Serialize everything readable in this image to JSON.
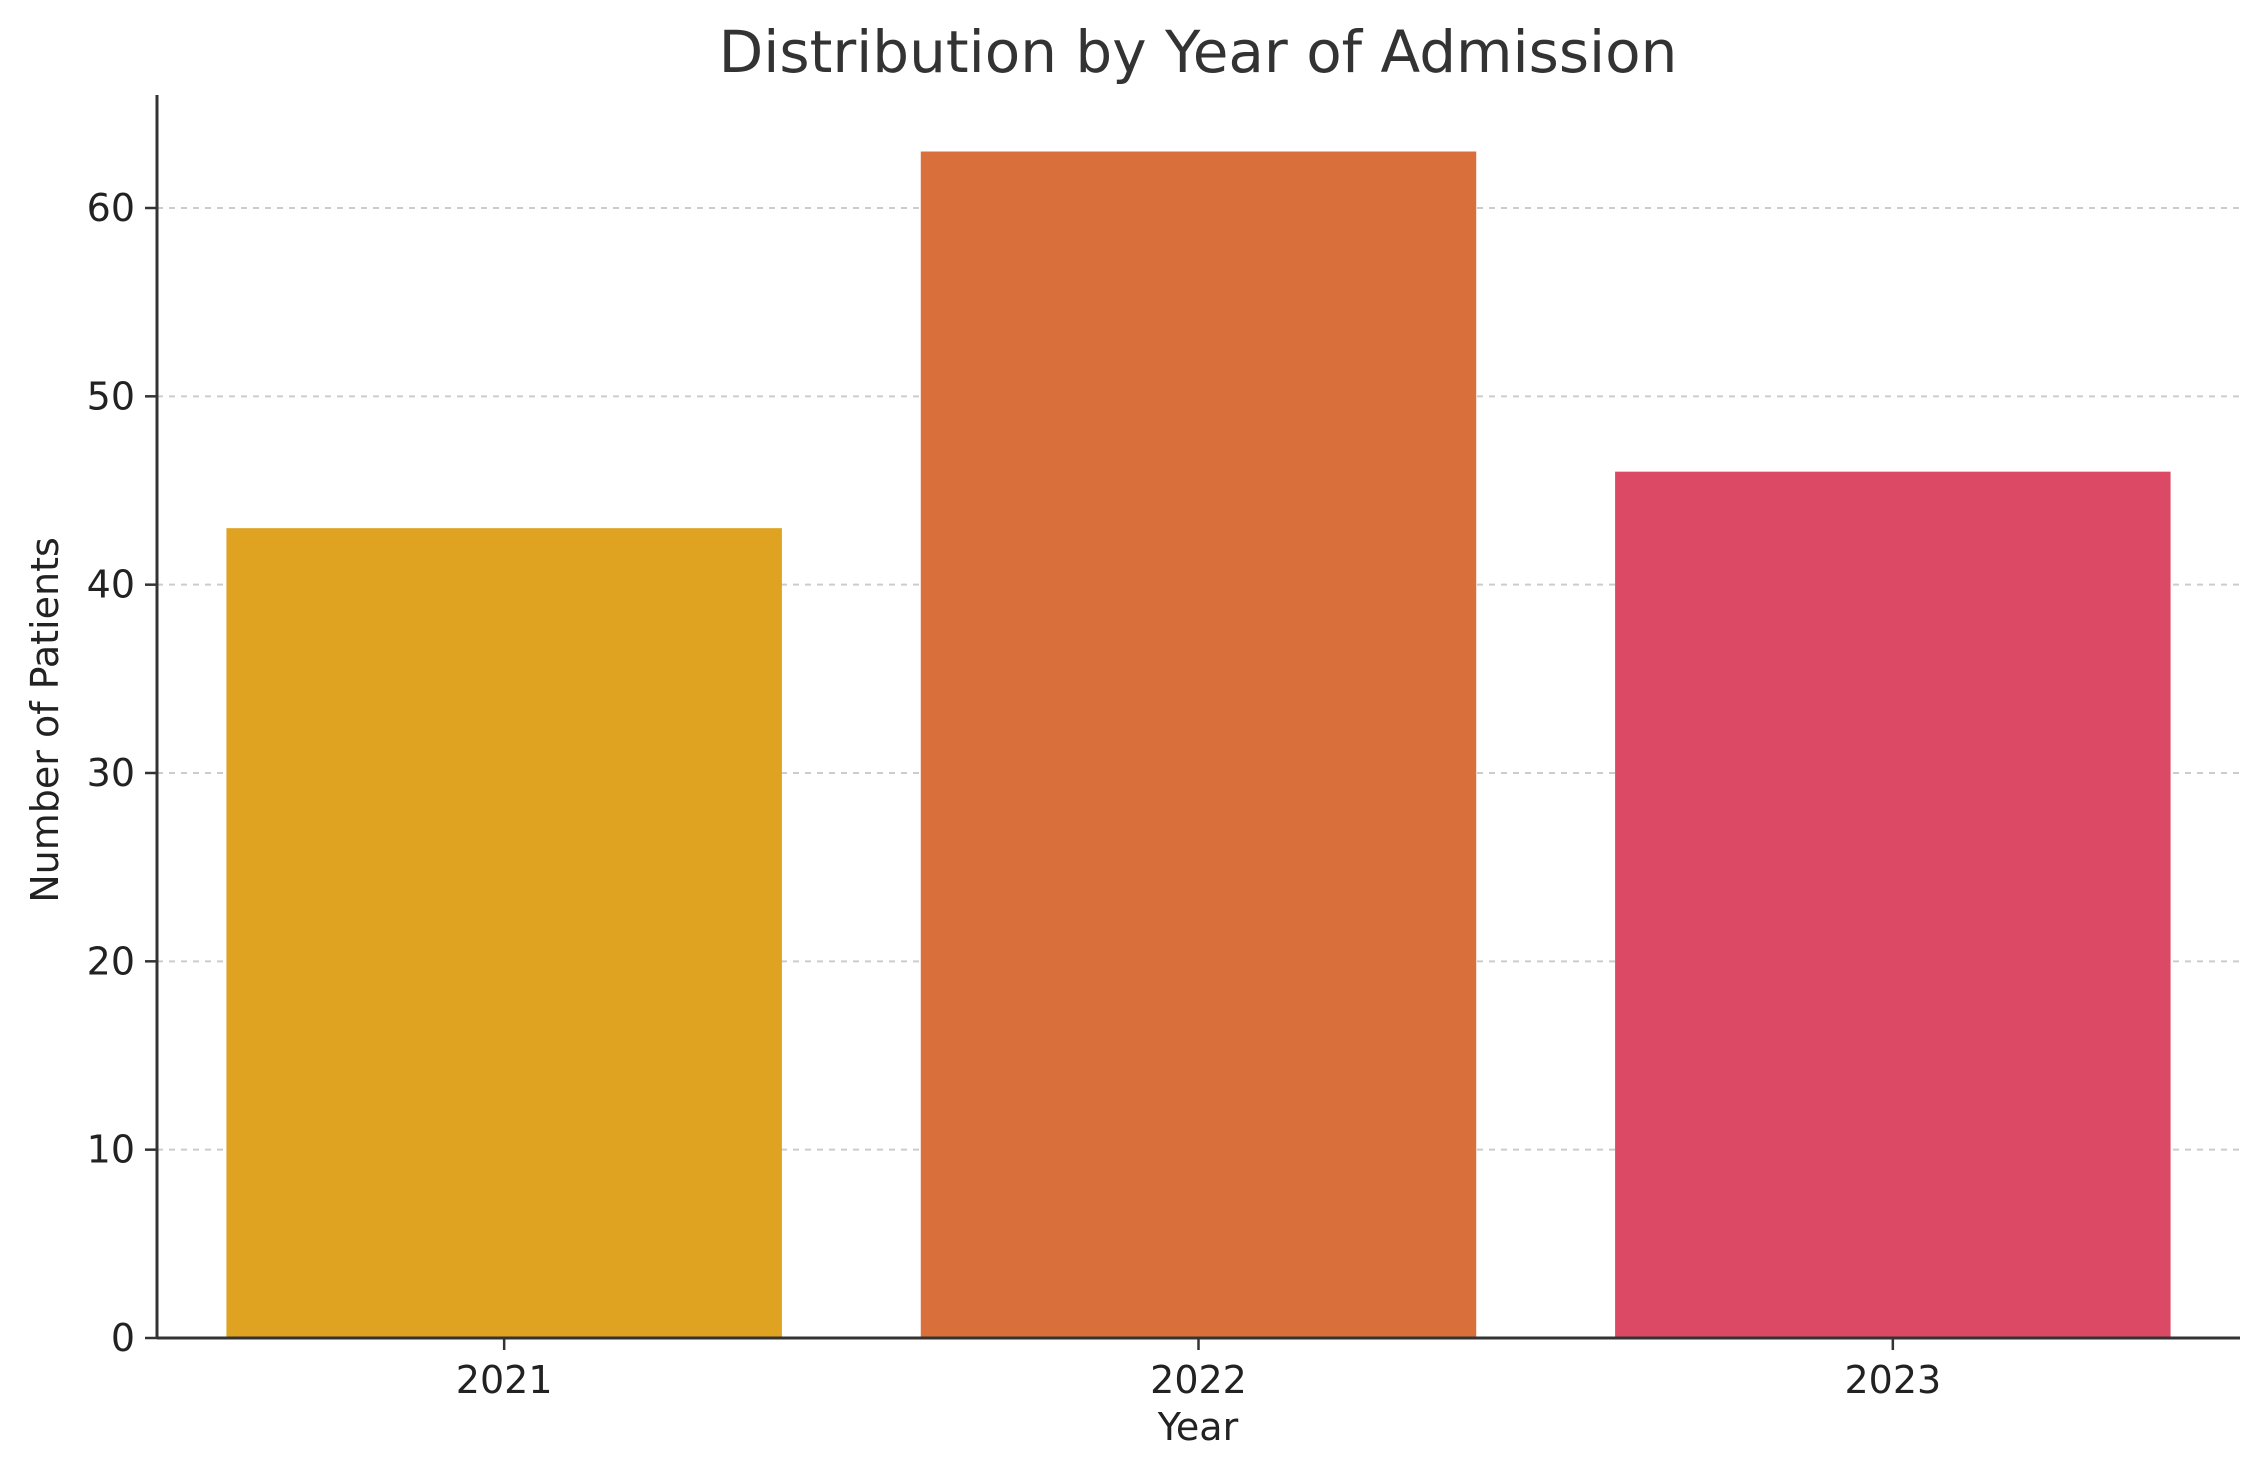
{
  "chart_data": {
    "type": "bar",
    "title": "Distribution by Year of Admission",
    "xlabel": "Year",
    "ylabel": "Number of Patients",
    "categories": [
      "2021",
      "2022",
      "2023"
    ],
    "values": [
      43,
      63,
      46
    ],
    "colors": [
      "#DFA221",
      "#D9703C",
      "#DB4965"
    ],
    "ylim": [
      0,
      66
    ],
    "yticks": [
      0,
      10,
      20,
      30,
      40,
      50,
      60
    ],
    "grid": "y-dashed",
    "legend": "none"
  }
}
